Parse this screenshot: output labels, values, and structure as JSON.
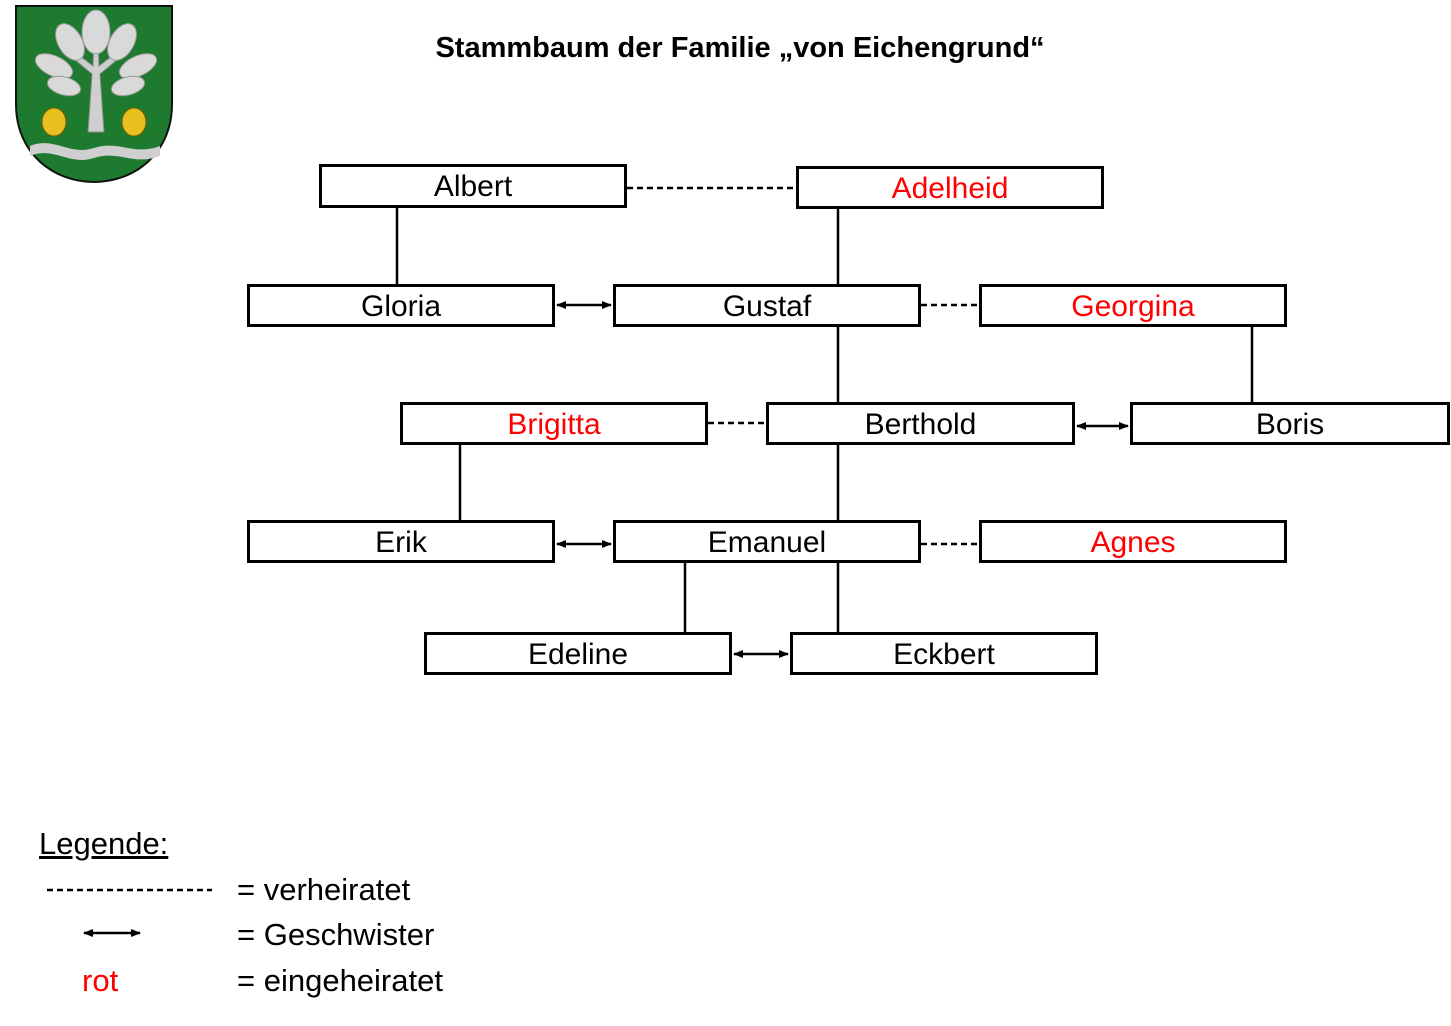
{
  "title": "Stammbaum der Familie „von Eichengrund“",
  "colors": {
    "married_in": "#ff0000",
    "normal": "#000000",
    "shield_green": "#1e7a2e",
    "silver": "#cfcfcf",
    "gold": "#e8c020"
  },
  "crest": {
    "icon": "coat-of-arms-oak-tree-acorns"
  },
  "persons": [
    {
      "id": "albert",
      "name": "Albert",
      "married_in": false
    },
    {
      "id": "adelheid",
      "name": "Adelheid",
      "married_in": true
    },
    {
      "id": "gloria",
      "name": "Gloria",
      "married_in": false
    },
    {
      "id": "gustaf",
      "name": "Gustaf",
      "married_in": false
    },
    {
      "id": "georgina",
      "name": "Georgina",
      "married_in": true
    },
    {
      "id": "brigitta",
      "name": "Brigitta",
      "married_in": true
    },
    {
      "id": "berthold",
      "name": "Berthold",
      "married_in": false
    },
    {
      "id": "boris",
      "name": "Boris",
      "married_in": false
    },
    {
      "id": "erik",
      "name": "Erik",
      "married_in": false
    },
    {
      "id": "emanuel",
      "name": "Emanuel",
      "married_in": false
    },
    {
      "id": "agnes",
      "name": "Agnes",
      "married_in": true
    },
    {
      "id": "edeline",
      "name": "Edeline",
      "married_in": false
    },
    {
      "id": "eckbert",
      "name": "Eckbert",
      "married_in": false
    }
  ],
  "relations": [
    {
      "type": "married",
      "a": "albert",
      "b": "adelheid"
    },
    {
      "type": "parent",
      "a": "albert",
      "b": "gloria"
    },
    {
      "type": "parent",
      "a": "adelheid",
      "b": "gustaf"
    },
    {
      "type": "siblings",
      "a": "gloria",
      "b": "gustaf"
    },
    {
      "type": "married",
      "a": "gustaf",
      "b": "georgina"
    },
    {
      "type": "parent",
      "a": "gustaf",
      "b": "berthold"
    },
    {
      "type": "parent",
      "a": "georgina",
      "b": "boris"
    },
    {
      "type": "married",
      "a": "brigitta",
      "b": "berthold"
    },
    {
      "type": "siblings",
      "a": "berthold",
      "b": "boris"
    },
    {
      "type": "parent",
      "a": "brigitta",
      "b": "erik"
    },
    {
      "type": "parent",
      "a": "berthold",
      "b": "emanuel"
    },
    {
      "type": "siblings",
      "a": "erik",
      "b": "emanuel"
    },
    {
      "type": "married",
      "a": "emanuel",
      "b": "agnes"
    },
    {
      "type": "parent",
      "a": "emanuel",
      "b": "edeline"
    },
    {
      "type": "parent",
      "a": "emanuel",
      "b": "eckbert"
    },
    {
      "type": "siblings",
      "a": "edeline",
      "b": "eckbert"
    }
  ],
  "legend": {
    "title": "Legende:",
    "married_symbol": "--------------",
    "married_label": "= verheiratet",
    "siblings_label": "= Geschwister",
    "married_in_symbol": "rot",
    "married_in_label": "= eingeheiratet"
  }
}
